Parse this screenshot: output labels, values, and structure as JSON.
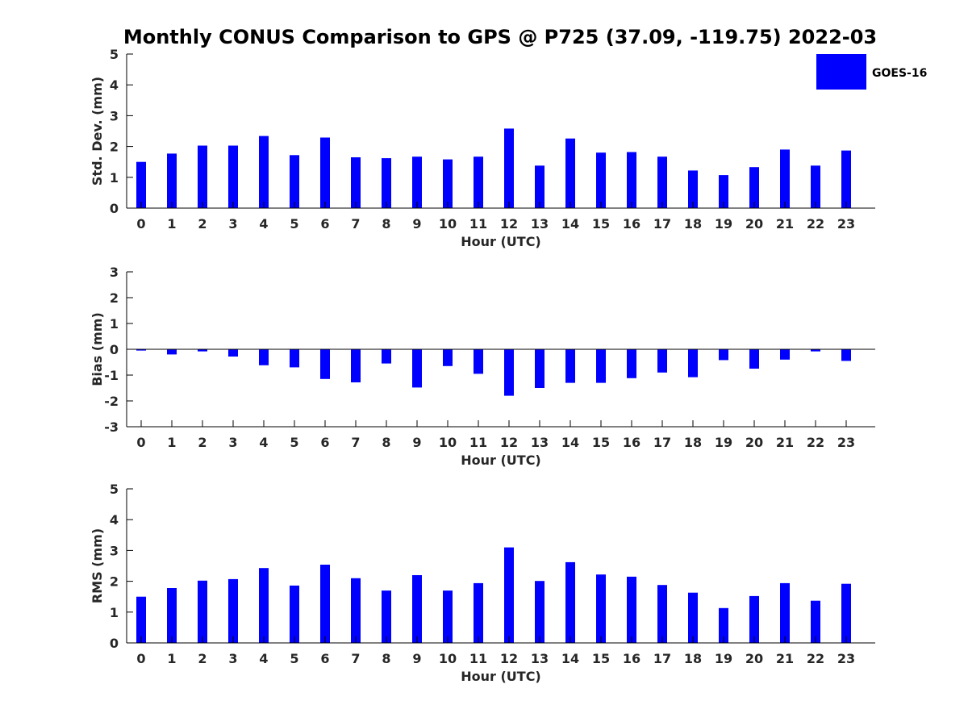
{
  "title": "Monthly CONUS Comparison to GPS @ P725 (37.09, -119.75) 2022-03",
  "legend": {
    "label": "GOES-16",
    "color": "#0000ff",
    "placement": "top-right"
  },
  "colors": {
    "bar": "#0000ff",
    "axis": "#000000",
    "text": "#262626"
  },
  "chart_data": [
    {
      "type": "bar",
      "ylabel": "Std. Dev. (mm)",
      "xlabel": "Hour (UTC)",
      "ylim": [
        0,
        5
      ],
      "yticks": [
        "0",
        "1",
        "2",
        "3",
        "4",
        "5"
      ],
      "categories": [
        "0",
        "1",
        "2",
        "3",
        "4",
        "5",
        "6",
        "7",
        "8",
        "9",
        "10",
        "11",
        "12",
        "13",
        "14",
        "15",
        "16",
        "17",
        "18",
        "19",
        "20",
        "21",
        "22",
        "23"
      ],
      "series": [
        {
          "name": "GOES-16",
          "values": [
            1.5,
            1.77,
            2.03,
            2.03,
            2.34,
            1.72,
            2.29,
            1.65,
            1.62,
            1.67,
            1.58,
            1.67,
            2.58,
            1.38,
            2.26,
            1.8,
            1.82,
            1.67,
            1.22,
            1.07,
            1.33,
            1.9,
            1.38,
            1.87
          ]
        }
      ],
      "grid": false
    },
    {
      "type": "bar",
      "ylabel": "Bias (mm)",
      "xlabel": "Hour (UTC)",
      "ylim": [
        -3,
        3
      ],
      "yticks": [
        "-3",
        "-2",
        "-1",
        "0",
        "1",
        "2",
        "3"
      ],
      "categories": [
        "0",
        "1",
        "2",
        "3",
        "4",
        "5",
        "6",
        "7",
        "8",
        "9",
        "10",
        "11",
        "12",
        "13",
        "14",
        "15",
        "16",
        "17",
        "18",
        "19",
        "20",
        "21",
        "22",
        "23"
      ],
      "series": [
        {
          "name": "GOES-16",
          "values": [
            -0.05,
            -0.2,
            -0.08,
            -0.28,
            -0.62,
            -0.7,
            -1.15,
            -1.28,
            -0.55,
            -1.48,
            -0.65,
            -0.95,
            -1.8,
            -1.5,
            -1.3,
            -1.3,
            -1.12,
            -0.9,
            -1.08,
            -0.42,
            -0.75,
            -0.4,
            -0.08,
            -0.45
          ]
        }
      ],
      "grid": false
    },
    {
      "type": "bar",
      "ylabel": "RMS (mm)",
      "xlabel": "Hour (UTC)",
      "ylim": [
        0,
        5
      ],
      "yticks": [
        "0",
        "1",
        "2",
        "3",
        "4",
        "5"
      ],
      "categories": [
        "0",
        "1",
        "2",
        "3",
        "4",
        "5",
        "6",
        "7",
        "8",
        "9",
        "10",
        "11",
        "12",
        "13",
        "14",
        "15",
        "16",
        "17",
        "18",
        "19",
        "20",
        "21",
        "22",
        "23"
      ],
      "series": [
        {
          "name": "GOES-16",
          "values": [
            1.5,
            1.78,
            2.02,
            2.07,
            2.43,
            1.86,
            2.54,
            2.1,
            1.7,
            2.2,
            1.7,
            1.94,
            3.1,
            2.01,
            2.62,
            2.22,
            2.15,
            1.88,
            1.63,
            1.13,
            1.52,
            1.94,
            1.37,
            1.92
          ]
        }
      ],
      "grid": false
    }
  ]
}
